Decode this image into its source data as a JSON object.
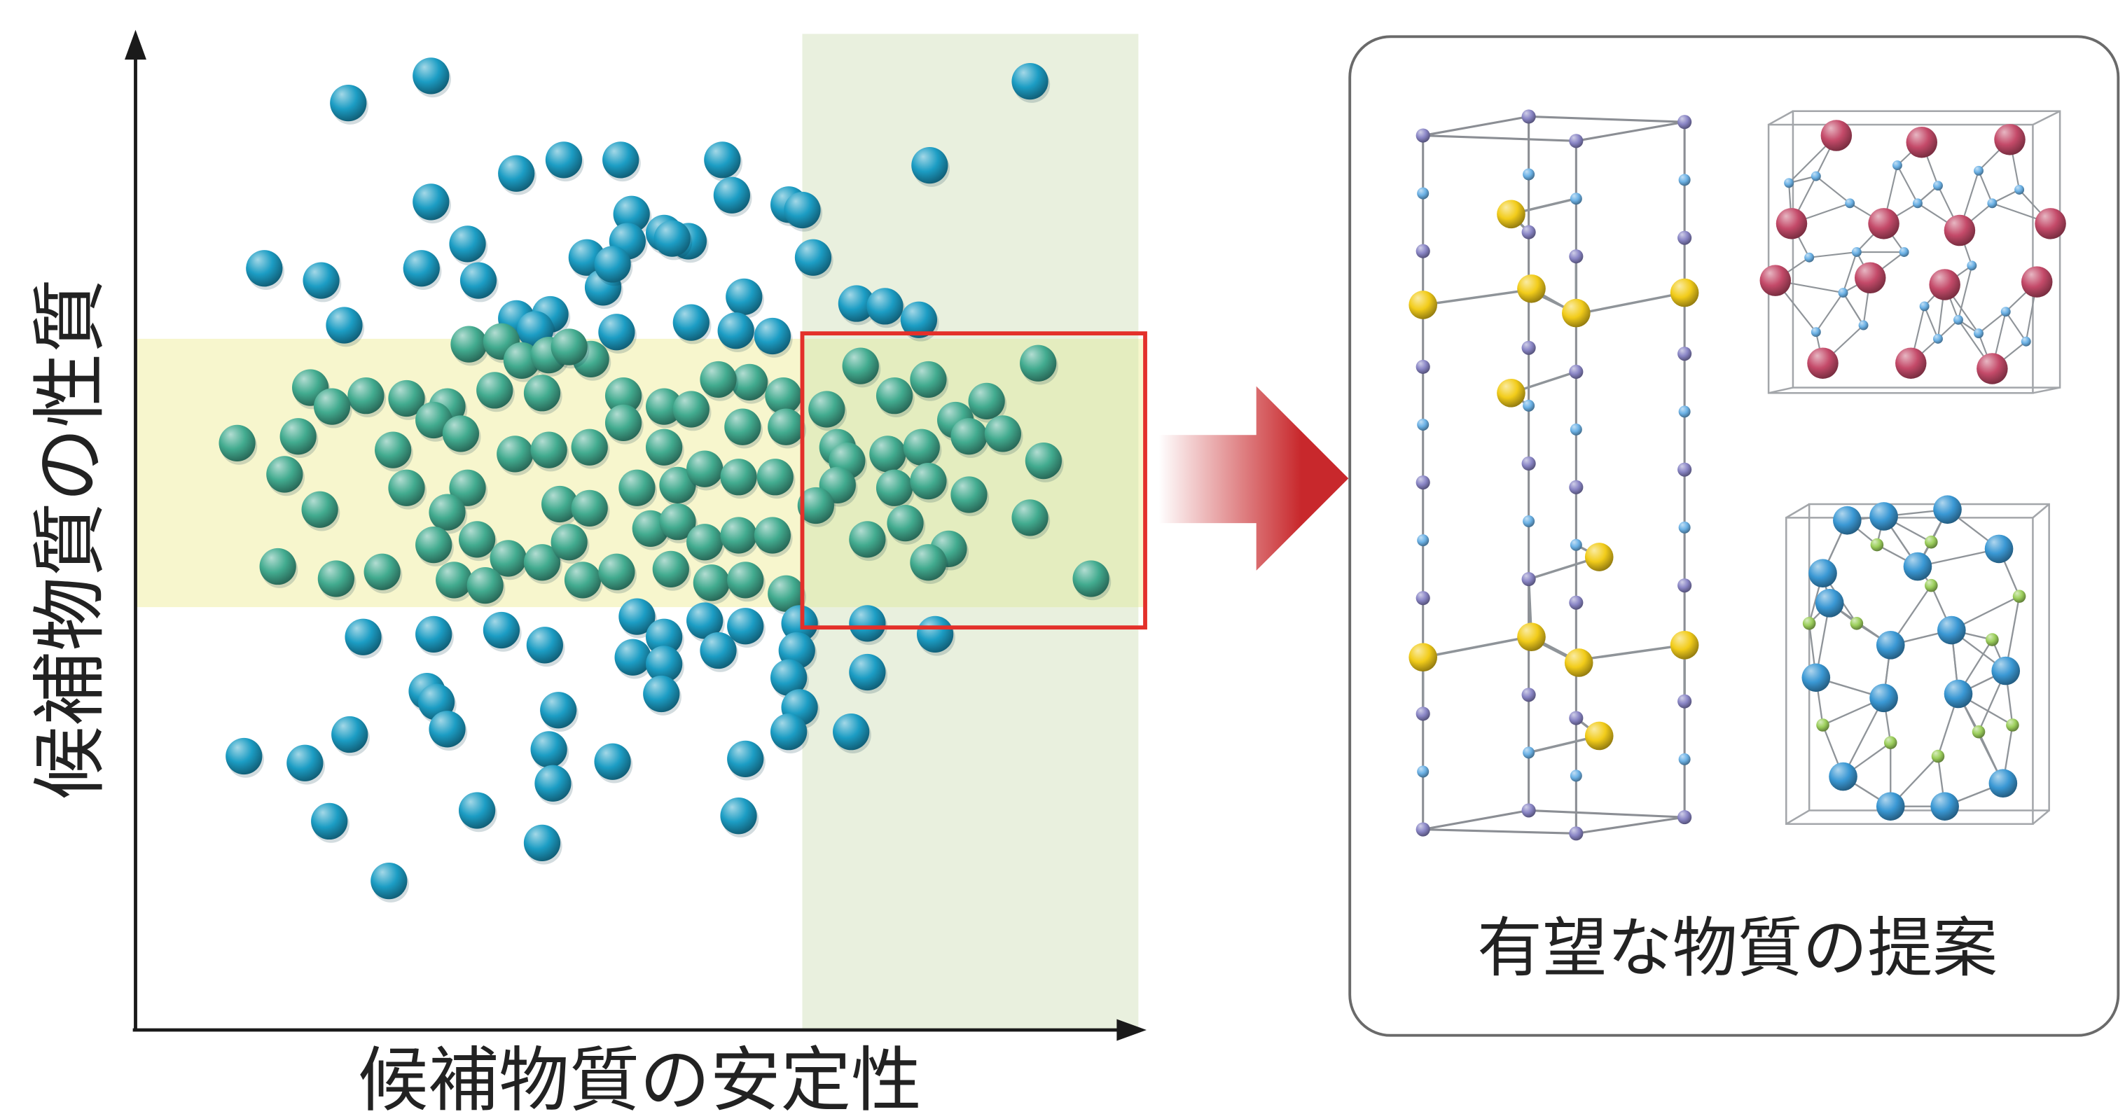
{
  "axes": {
    "y_label": "候補物質の性質",
    "x_label": "候補物質の安定性"
  },
  "panel": {
    "caption": "有望な物質の提案"
  },
  "icons": [
    "arrow-right-icon",
    "crystal-structure-prism",
    "crystal-structure-pink-cube",
    "crystal-structure-blue-cube"
  ],
  "colors": {
    "candidate_blue": "#1c9dc4",
    "candidate_green": "#42ab8f",
    "property_band": "#f7f6cd",
    "stability_band": "#e9f0de",
    "overlap_band": "#e4edbf",
    "highlight_box": "#e3302a",
    "arrow": "#c8282c",
    "atom_yellow": "#f2cc1a",
    "atom_pink": "#c44a69",
    "atom_blue": "#3a98d4",
    "atom_green": "#9ccf5c",
    "atom_purple": "#8a86c6",
    "atom_small_blue": "#6cb2e6",
    "bond": "#8f9499",
    "frame": "#6a6a6a"
  }
}
